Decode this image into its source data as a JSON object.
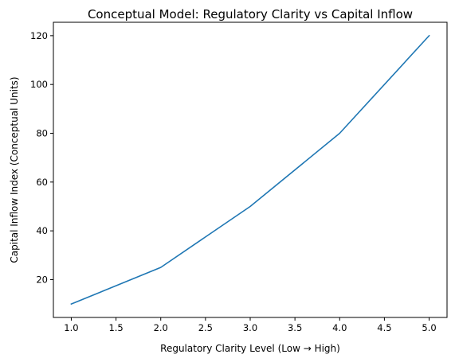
{
  "chart_data": {
    "type": "line",
    "title": "Conceptual Model: Regulatory Clarity vs Capital Inflow",
    "xlabel": "Regulatory Clarity Level (Low → High)",
    "ylabel": "Capital Inflow Index (Conceptual Units)",
    "x": [
      1,
      2,
      3,
      4,
      5
    ],
    "series": [
      {
        "values": [
          10,
          25,
          50,
          80,
          120
        ],
        "color": "#1f77b4"
      }
    ],
    "xlim": [
      0.8,
      5.2
    ],
    "ylim": [
      4.5,
      125.5
    ],
    "xticks": [
      1.0,
      1.5,
      2.0,
      2.5,
      3.0,
      3.5,
      4.0,
      4.5,
      5.0
    ],
    "xtick_labels": [
      "1.0",
      "1.5",
      "2.0",
      "2.5",
      "3.0",
      "3.5",
      "4.0",
      "4.5",
      "5.0"
    ],
    "yticks": [
      20,
      40,
      60,
      80,
      100,
      120
    ],
    "ytick_labels": [
      "20",
      "40",
      "60",
      "80",
      "100",
      "120"
    ],
    "grid": false,
    "legend": "none"
  }
}
